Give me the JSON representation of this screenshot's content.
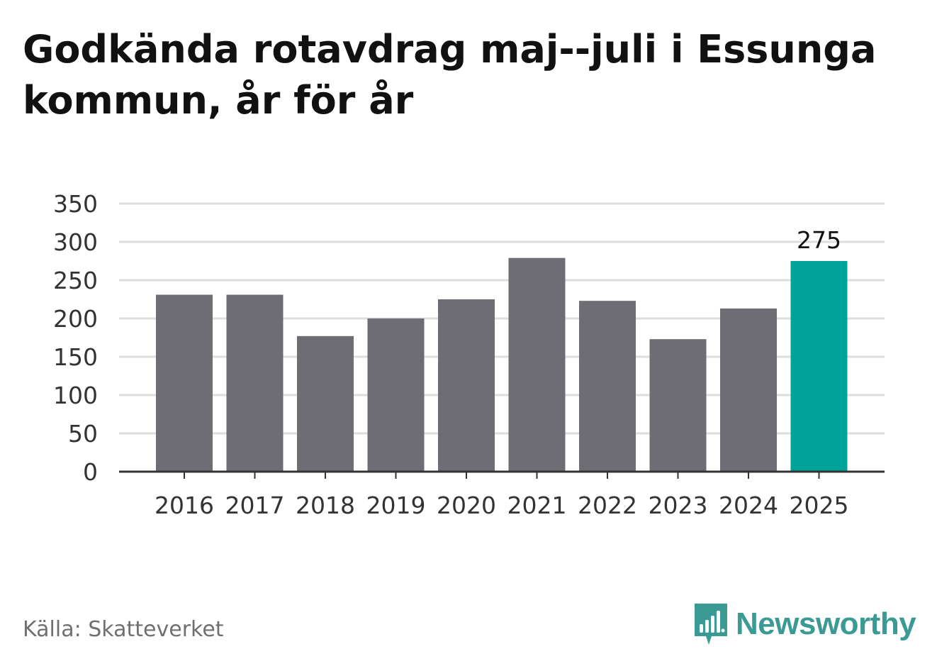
{
  "header": {
    "title": "Godkända rotavdrag maj--juli i Essunga kommun, år för år"
  },
  "chart_data": {
    "type": "bar",
    "categories": [
      "2016",
      "2017",
      "2018",
      "2019",
      "2020",
      "2021",
      "2022",
      "2023",
      "2024",
      "2025"
    ],
    "values": [
      231,
      231,
      177,
      200,
      225,
      279,
      223,
      173,
      213,
      275
    ],
    "ylim": [
      0,
      350
    ],
    "yticks": [
      0,
      50,
      100,
      150,
      200,
      250,
      300,
      350
    ],
    "grid": true,
    "highlight_index": 9,
    "data_labels": [
      {
        "index": 9,
        "text": "275"
      }
    ],
    "colors": {
      "bar": "#6e6d73",
      "highlight": "#00a39a",
      "grid": "#dedede",
      "axis": "#333333"
    }
  },
  "footer": {
    "source": "Källa: Skatteverket",
    "brand": "Newsworthy",
    "brand_icon": "newsworthy-logo-icon",
    "brand_color": "#3b9b94"
  }
}
